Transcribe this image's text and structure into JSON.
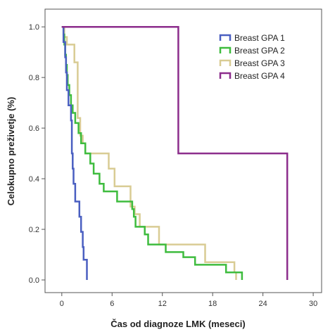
{
  "chart_data": {
    "type": "line",
    "subtype": "kaplan-meier-step",
    "xlabel": "Čas od diagnoze LMK (meseci)",
    "ylabel": "Celokupno preživetje (%)",
    "xlim": [
      -2,
      31
    ],
    "ylim": [
      -0.05,
      1.07
    ],
    "xticks": [
      0,
      6,
      12,
      18,
      24,
      30
    ],
    "xtick_labels": [
      "0",
      "6",
      "12",
      "18",
      "24",
      "30"
    ],
    "yticks": [
      0.0,
      0.2,
      0.4,
      0.6,
      0.8,
      1.0
    ],
    "ytick_labels": [
      "0.0",
      "0.2",
      "0.4",
      "0.6",
      "0.8",
      "1.0"
    ],
    "grid": false,
    "legend_position": "top-right",
    "series": [
      {
        "name": "Breast GPA 1",
        "color": "#4a5fc1",
        "points": [
          [
            0,
            1.0
          ],
          [
            0.2,
            0.94
          ],
          [
            0.4,
            0.88
          ],
          [
            0.5,
            0.82
          ],
          [
            0.6,
            0.75
          ],
          [
            0.8,
            0.69
          ],
          [
            1.1,
            0.63
          ],
          [
            1.2,
            0.5
          ],
          [
            1.3,
            0.44
          ],
          [
            1.4,
            0.38
          ],
          [
            1.6,
            0.31
          ],
          [
            2.1,
            0.25
          ],
          [
            2.3,
            0.19
          ],
          [
            2.5,
            0.13
          ],
          [
            2.6,
            0.08
          ],
          [
            3.0,
            0.0
          ]
        ]
      },
      {
        "name": "Breast GPA 2",
        "color": "#3ebc3e",
        "points": [
          [
            0,
            1.0
          ],
          [
            0.2,
            0.97
          ],
          [
            0.3,
            0.93
          ],
          [
            0.4,
            0.89
          ],
          [
            0.5,
            0.85
          ],
          [
            0.6,
            0.81
          ],
          [
            0.7,
            0.77
          ],
          [
            0.9,
            0.73
          ],
          [
            1.1,
            0.69
          ],
          [
            1.3,
            0.66
          ],
          [
            1.6,
            0.62
          ],
          [
            2.0,
            0.58
          ],
          [
            2.3,
            0.54
          ],
          [
            2.8,
            0.5
          ],
          [
            3.4,
            0.46
          ],
          [
            3.8,
            0.42
          ],
          [
            4.5,
            0.38
          ],
          [
            5.0,
            0.35
          ],
          [
            6.6,
            0.31
          ],
          [
            8.4,
            0.28
          ],
          [
            8.6,
            0.25
          ],
          [
            8.8,
            0.21
          ],
          [
            9.9,
            0.18
          ],
          [
            10.3,
            0.14
          ],
          [
            12.4,
            0.11
          ],
          [
            14.5,
            0.09
          ],
          [
            15.9,
            0.06
          ],
          [
            19.6,
            0.03
          ],
          [
            21.5,
            0.0
          ]
        ]
      },
      {
        "name": "Breast GPA 3",
        "color": "#d9cc94",
        "points": [
          [
            0,
            1.0
          ],
          [
            0.3,
            0.96
          ],
          [
            0.6,
            0.93
          ],
          [
            1.5,
            0.86
          ],
          [
            1.9,
            0.64
          ],
          [
            2.2,
            0.57
          ],
          [
            2.5,
            0.54
          ],
          [
            2.8,
            0.5
          ],
          [
            5.6,
            0.44
          ],
          [
            6.3,
            0.37
          ],
          [
            8.2,
            0.29
          ],
          [
            8.7,
            0.26
          ],
          [
            9.3,
            0.21
          ],
          [
            11.6,
            0.14
          ],
          [
            17.1,
            0.07
          ],
          [
            20.6,
            0.03
          ],
          [
            20.8,
            0.0
          ]
        ]
      },
      {
        "name": "Breast GPA 4",
        "color": "#8c2d8c",
        "points": [
          [
            0,
            1.0
          ],
          [
            13.9,
            0.5
          ],
          [
            26.9,
            0.0
          ]
        ]
      }
    ]
  }
}
